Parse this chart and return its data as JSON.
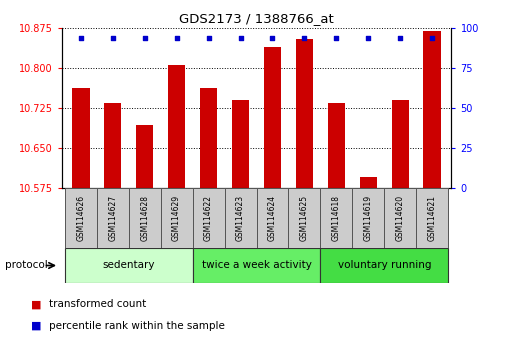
{
  "title": "GDS2173 / 1388766_at",
  "samples": [
    "GSM114626",
    "GSM114627",
    "GSM114628",
    "GSM114629",
    "GSM114622",
    "GSM114623",
    "GSM114624",
    "GSM114625",
    "GSM114618",
    "GSM114619",
    "GSM114620",
    "GSM114621"
  ],
  "bar_values": [
    10.762,
    10.735,
    10.692,
    10.805,
    10.762,
    10.74,
    10.84,
    10.855,
    10.735,
    10.595,
    10.74,
    10.87
  ],
  "y_min": 10.575,
  "y_max": 10.875,
  "y_ticks": [
    10.575,
    10.65,
    10.725,
    10.8,
    10.875
  ],
  "y2_ticks": [
    0,
    25,
    50,
    75,
    100
  ],
  "bar_color": "#cc0000",
  "percentile_color": "#0000cc",
  "groups": [
    {
      "label": "sedentary",
      "start": 0,
      "end": 4,
      "color": "#ccffcc"
    },
    {
      "label": "twice a week activity",
      "start": 4,
      "end": 8,
      "color": "#66ee66"
    },
    {
      "label": "voluntary running",
      "start": 8,
      "end": 12,
      "color": "#44dd44"
    }
  ],
  "protocol_label": "protocol",
  "legend_bar_label": "transformed count",
  "legend_pct_label": "percentile rank within the sample",
  "bar_width": 0.55,
  "background_color": "#ffffff"
}
